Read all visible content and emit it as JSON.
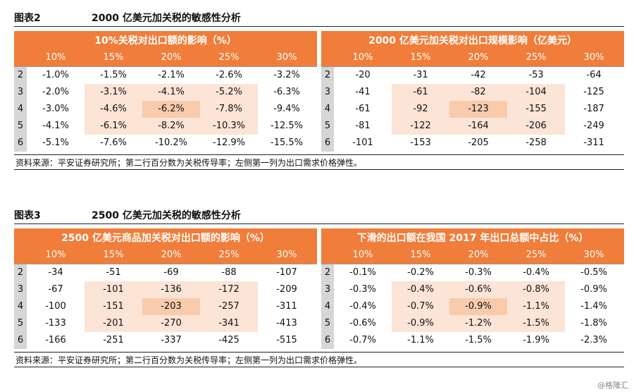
{
  "fig1": {
    "label": "图表2",
    "caption": "2000 亿美元加关税的敏感性分析",
    "left": {
      "header": "10%关税对出口额的影响（%）",
      "cols": [
        "10%",
        "15%",
        "20%",
        "25%",
        "30%"
      ],
      "elasticity": [
        "2",
        "3",
        "4",
        "5",
        "6"
      ],
      "rows": [
        [
          "-1.0%",
          "-1.5%",
          "-2.1%",
          "-2.6%",
          "-3.2%"
        ],
        [
          "-2.0%",
          "-3.1%",
          "-4.1%",
          "-5.2%",
          "-6.3%"
        ],
        [
          "-3.0%",
          "-4.6%",
          "-6.2%",
          "-7.8%",
          "-9.4%"
        ],
        [
          "-4.1%",
          "-6.1%",
          "-8.2%",
          "-10.3%",
          "-12.5%"
        ],
        [
          "-5.1%",
          "-7.6%",
          "-10.2%",
          "-12.9%",
          "-15.5%"
        ]
      ]
    },
    "right": {
      "header": "2000 亿美元加关税对出口规模影响（亿美元）",
      "cols": [
        "10%",
        "15%",
        "20%",
        "25%",
        "30%"
      ],
      "elasticity": [
        "2",
        "3",
        "4",
        "5",
        "6"
      ],
      "rows": [
        [
          "-20",
          "-31",
          "-42",
          "-53",
          "-64"
        ],
        [
          "-41",
          "-61",
          "-82",
          "-104",
          "-125"
        ],
        [
          "-61",
          "-92",
          "-123",
          "-155",
          "-187"
        ],
        [
          "-81",
          "-122",
          "-164",
          "-206",
          "-249"
        ],
        [
          "-101",
          "-153",
          "-205",
          "-258",
          "-311"
        ]
      ]
    },
    "source": "资料来源：平安证券研究所；第二行百分数为关税传导率；左侧第一列为出口需求价格弹性。"
  },
  "fig2": {
    "label": "图表3",
    "caption": "2500 亿美元加关税的敏感性分析",
    "left": {
      "header": "2500 亿美元商品加关税对出口额的影响（%）",
      "cols": [
        "10%",
        "15%",
        "20%",
        "25%",
        "30%"
      ],
      "elasticity": [
        "2",
        "3",
        "4",
        "5",
        "6"
      ],
      "rows": [
        [
          "-34",
          "-51",
          "-69",
          "-88",
          "-107"
        ],
        [
          "-67",
          "-101",
          "-136",
          "-172",
          "-209"
        ],
        [
          "-100",
          "-151",
          "-203",
          "-257",
          "-311"
        ],
        [
          "-133",
          "-201",
          "-270",
          "-341",
          "-413"
        ],
        [
          "-166",
          "-251",
          "-337",
          "-425",
          "-515"
        ]
      ]
    },
    "right": {
      "header": "下滑的出口额在我国 2017 年出口总额中占比（%）",
      "cols": [
        "10%",
        "15%",
        "20%",
        "25%",
        "30%"
      ],
      "elasticity": [
        "2",
        "3",
        "4",
        "5",
        "6"
      ],
      "rows": [
        [
          "-0.1%",
          "-0.2%",
          "-0.3%",
          "-0.4%",
          "-0.5%"
        ],
        [
          "-0.3%",
          "-0.4%",
          "-0.6%",
          "-0.8%",
          "-0.9%"
        ],
        [
          "-0.4%",
          "-0.7%",
          "-0.9%",
          "-1.1%",
          "-1.4%"
        ],
        [
          "-0.6%",
          "-0.9%",
          "-1.2%",
          "-1.5%",
          "-1.8%"
        ],
        [
          "-0.7%",
          "-1.1%",
          "-1.5%",
          "-1.9%",
          "-2.3%"
        ]
      ]
    },
    "source": "资料来源：平安证券研究所；第二行百分数为关税传导率；左侧第一列为出口需求价格弹性。"
  },
  "watermark": "@格隆汇",
  "colors": {
    "header": "#f07d3a",
    "highlight": "#fce4d6",
    "center": "#f8cbad",
    "elasticity": "#d6d6d6"
  }
}
